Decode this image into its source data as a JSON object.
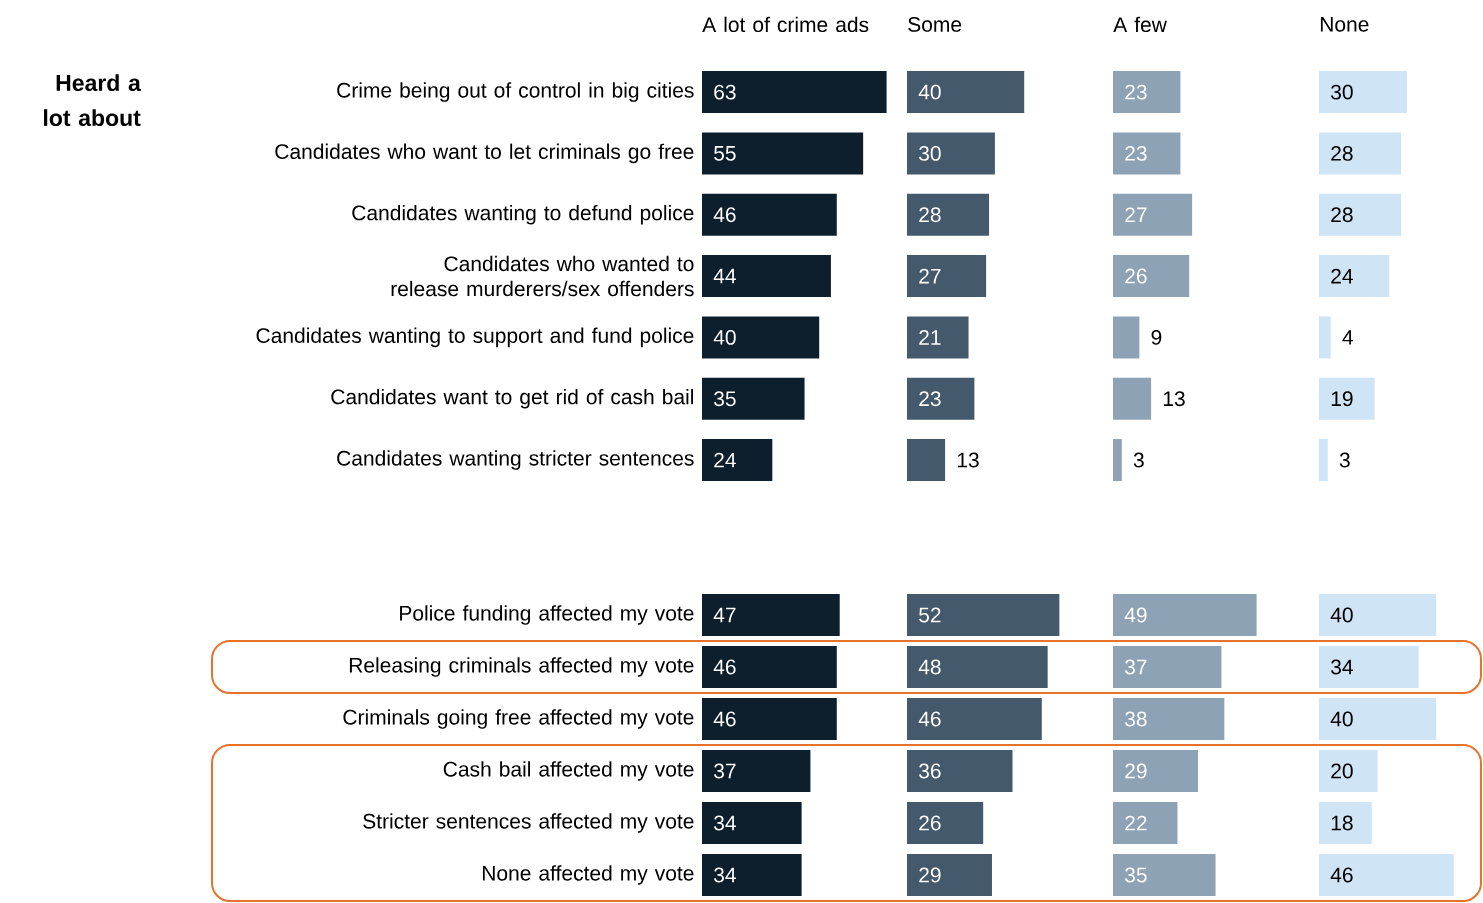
{
  "chart_data": [
    {
      "type": "bar",
      "orientation": "horizontal",
      "title": "A lot of crime ads",
      "annotations": [
        "Heard a lot about"
      ],
      "categories": [
        "Crime being out of control in big cities",
        "Candidates who want to let criminals go free",
        "Candidates wanting to defund police",
        "Candidates who wanted to release murderers/sex offenders",
        "Candidates wanting to support and fund police",
        "Candidates want to get rid of cash bail",
        "Candidates wanting stricter sentences"
      ],
      "values": [
        63,
        55,
        46,
        44,
        40,
        35,
        24
      ],
      "color": "#0d1f2d",
      "data_labels": true,
      "tick_labels": "y"
    },
    {
      "type": "bar",
      "orientation": "horizontal",
      "title": "Some",
      "values": [
        40,
        30,
        28,
        27,
        21,
        23,
        13
      ],
      "color": "#44596b",
      "data_labels": true,
      "tick_labels": false
    },
    {
      "type": "bar",
      "orientation": "horizontal",
      "title": "A few",
      "values": [
        23,
        23,
        27,
        26,
        9,
        13,
        3
      ],
      "color": "#8da2b5",
      "data_labels": true,
      "tick_labels": false
    },
    {
      "type": "bar",
      "orientation": "horizontal",
      "title": "None",
      "values": [
        30,
        28,
        28,
        24,
        4,
        19,
        3
      ],
      "color": "#cfe4f5",
      "data_labels": true,
      "tick_labels": false
    },
    {
      "type": "bar",
      "orientation": "horizontal",
      "categories": [
        "Police funding affected my vote",
        "Releasing criminals affected my vote",
        "Criminals going free affected my vote",
        "Cash bail affected my vote",
        "Stricter sentences affected my vote",
        "None affected my vote"
      ],
      "values": [
        47,
        46,
        46,
        37,
        34,
        34
      ],
      "color": "#0d1f2d",
      "data_labels": true,
      "tick_labels": "y"
    },
    {
      "type": "bar",
      "orientation": "horizontal",
      "values": [
        52,
        48,
        46,
        36,
        26,
        29
      ],
      "color": "#44596b",
      "data_labels": true,
      "tick_labels": false
    },
    {
      "type": "bar",
      "orientation": "horizontal",
      "values": [
        49,
        37,
        38,
        29,
        22,
        35
      ],
      "color": "#8da2b5",
      "data_labels": true,
      "tick_labels": false
    },
    {
      "type": "bar",
      "orientation": "horizontal",
      "values": [
        40,
        34,
        40,
        20,
        18,
        46
      ],
      "color": "#cfe4f5",
      "data_labels": true,
      "tick_labels": false
    }
  ]
}
